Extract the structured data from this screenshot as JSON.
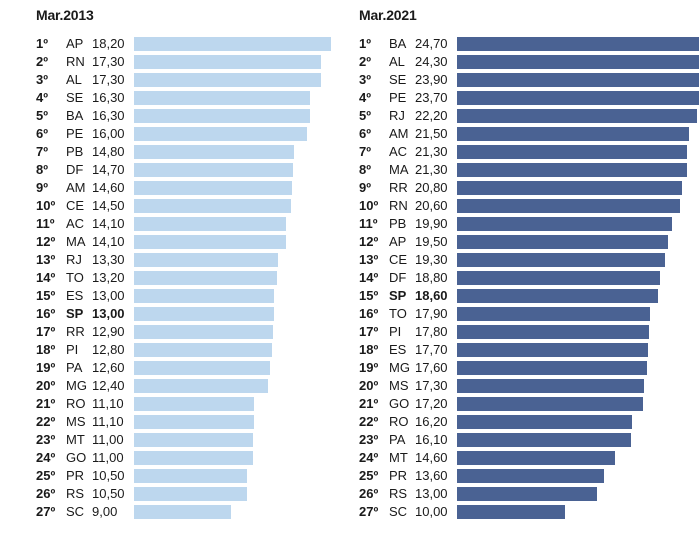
{
  "chart_data": [
    {
      "type": "bar",
      "title": "Mar.2013",
      "colors": {
        "bar": "#bdd7ee"
      },
      "highlight": "SP",
      "rows": [
        {
          "rank": "1º",
          "uf": "AP",
          "label": "18,20",
          "value": 18.2
        },
        {
          "rank": "2º",
          "uf": "RN",
          "label": "17,30",
          "value": 17.3
        },
        {
          "rank": "3º",
          "uf": "AL",
          "label": "17,30",
          "value": 17.3
        },
        {
          "rank": "4º",
          "uf": "SE",
          "label": "16,30",
          "value": 16.3
        },
        {
          "rank": "5º",
          "uf": "BA",
          "label": "16,30",
          "value": 16.3
        },
        {
          "rank": "6º",
          "uf": "PE",
          "label": "16,00",
          "value": 16.0
        },
        {
          "rank": "7º",
          "uf": "PB",
          "label": "14,80",
          "value": 14.8
        },
        {
          "rank": "8º",
          "uf": "DF",
          "label": "14,70",
          "value": 14.7
        },
        {
          "rank": "9º",
          "uf": "AM",
          "label": "14,60",
          "value": 14.6
        },
        {
          "rank": "10º",
          "uf": "CE",
          "label": "14,50",
          "value": 14.5
        },
        {
          "rank": "11º",
          "uf": "AC",
          "label": "14,10",
          "value": 14.1
        },
        {
          "rank": "12º",
          "uf": "MA",
          "label": "14,10",
          "value": 14.1
        },
        {
          "rank": "13º",
          "uf": "RJ",
          "label": "13,30",
          "value": 13.3
        },
        {
          "rank": "14º",
          "uf": "TO",
          "label": "13,20",
          "value": 13.2
        },
        {
          "rank": "15º",
          "uf": "ES",
          "label": "13,00",
          "value": 13.0
        },
        {
          "rank": "16º",
          "uf": "SP",
          "label": "13,00",
          "value": 13.0
        },
        {
          "rank": "17º",
          "uf": "RR",
          "label": "12,90",
          "value": 12.9
        },
        {
          "rank": "18º",
          "uf": "PI",
          "label": "12,80",
          "value": 12.8
        },
        {
          "rank": "19º",
          "uf": "PA",
          "label": "12,60",
          "value": 12.6
        },
        {
          "rank": "20º",
          "uf": "MG",
          "label": "12,40",
          "value": 12.4
        },
        {
          "rank": "21º",
          "uf": "RO",
          "label": "11,10",
          "value": 11.1
        },
        {
          "rank": "22º",
          "uf": "MS",
          "label": "11,10",
          "value": 11.1
        },
        {
          "rank": "23º",
          "uf": "MT",
          "label": "11,00",
          "value": 11.0
        },
        {
          "rank": "24º",
          "uf": "GO",
          "label": "11,00",
          "value": 11.0
        },
        {
          "rank": "25º",
          "uf": "PR",
          "label": "10,50",
          "value": 10.5
        },
        {
          "rank": "26º",
          "uf": "RS",
          "label": "10,50",
          "value": 10.5
        },
        {
          "rank": "27º",
          "uf": "SC",
          "label": "9,00",
          "value": 9.0
        }
      ]
    },
    {
      "type": "bar",
      "title": "Mar.2021",
      "colors": {
        "bar": "#4a6293"
      },
      "highlight": "SP",
      "rows": [
        {
          "rank": "1º",
          "uf": "BA",
          "label": "24,70",
          "value": 24.7
        },
        {
          "rank": "2º",
          "uf": "AL",
          "label": "24,30",
          "value": 24.3
        },
        {
          "rank": "3º",
          "uf": "SE",
          "label": "23,90",
          "value": 23.9
        },
        {
          "rank": "4º",
          "uf": "PE",
          "label": "23,70",
          "value": 23.7
        },
        {
          "rank": "5º",
          "uf": "RJ",
          "label": "22,20",
          "value": 22.2
        },
        {
          "rank": "6º",
          "uf": "AM",
          "label": "21,50",
          "value": 21.5
        },
        {
          "rank": "7º",
          "uf": "AC",
          "label": "21,30",
          "value": 21.3
        },
        {
          "rank": "8º",
          "uf": "MA",
          "label": "21,30",
          "value": 21.3
        },
        {
          "rank": "9º",
          "uf": "RR",
          "label": "20,80",
          "value": 20.8
        },
        {
          "rank": "10º",
          "uf": "RN",
          "label": "20,60",
          "value": 20.6
        },
        {
          "rank": "11º",
          "uf": "PB",
          "label": "19,90",
          "value": 19.9
        },
        {
          "rank": "12º",
          "uf": "AP",
          "label": "19,50",
          "value": 19.5
        },
        {
          "rank": "13º",
          "uf": "CE",
          "label": "19,30",
          "value": 19.3
        },
        {
          "rank": "14º",
          "uf": "DF",
          "label": "18,80",
          "value": 18.8
        },
        {
          "rank": "15º",
          "uf": "SP",
          "label": "18,60",
          "value": 18.6
        },
        {
          "rank": "16º",
          "uf": "TO",
          "label": "17,90",
          "value": 17.9
        },
        {
          "rank": "17º",
          "uf": "PI",
          "label": "17,80",
          "value": 17.8
        },
        {
          "rank": "18º",
          "uf": "ES",
          "label": "17,70",
          "value": 17.7
        },
        {
          "rank": "19º",
          "uf": "MG",
          "label": "17,60",
          "value": 17.6
        },
        {
          "rank": "20º",
          "uf": "MS",
          "label": "17,30",
          "value": 17.3
        },
        {
          "rank": "21º",
          "uf": "GO",
          "label": "17,20",
          "value": 17.2
        },
        {
          "rank": "22º",
          "uf": "RO",
          "label": "16,20",
          "value": 16.2
        },
        {
          "rank": "23º",
          "uf": "PA",
          "label": "16,10",
          "value": 16.1
        },
        {
          "rank": "24º",
          "uf": "MT",
          "label": "14,60",
          "value": 14.6
        },
        {
          "rank": "25º",
          "uf": "PR",
          "label": "13,60",
          "value": 13.6
        },
        {
          "rank": "26º",
          "uf": "RS",
          "label": "13,00",
          "value": 13.0
        },
        {
          "rank": "27º",
          "uf": "SC",
          "label": "10,00",
          "value": 10.0
        }
      ]
    }
  ]
}
